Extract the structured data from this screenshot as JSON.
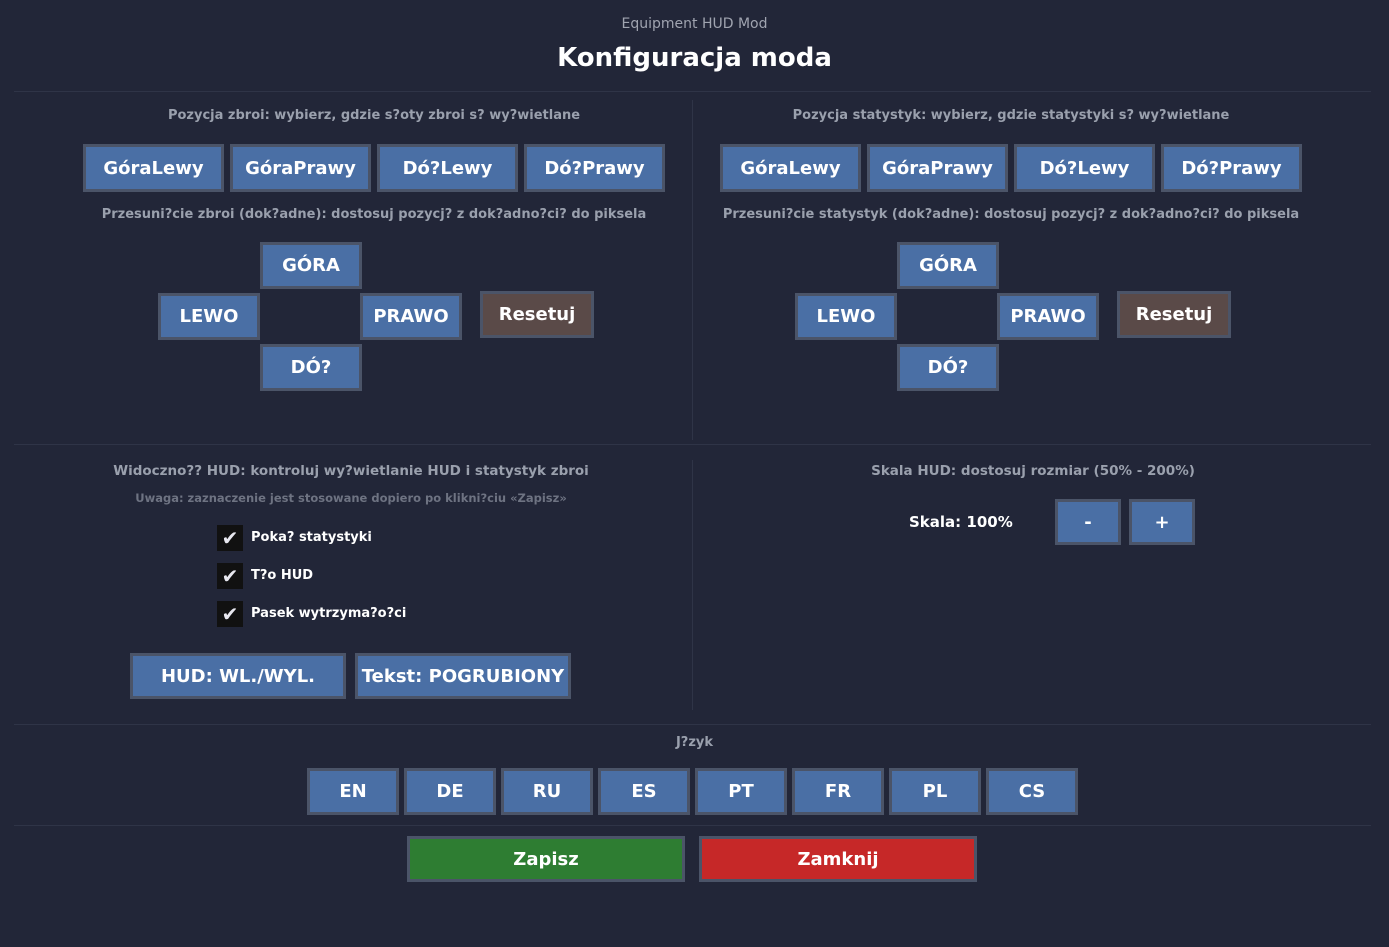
{
  "header": {
    "app": "Equipment HUD Mod",
    "title": "Konfiguracja moda"
  },
  "armor": {
    "position_label": "Pozycja zbroi: wybierz, gdzie s?oty zbroi s? wy?wietlane",
    "positions": [
      "GóraLewy",
      "GóraPrawy",
      "Dó?Lewy",
      "Dó?Prawy"
    ],
    "offset_label": "Przesuni?cie zbroi (dok?adne): dostosuj pozycj? z dok?adno?ci? do piksela",
    "up": "GÓRA",
    "left": "LEWO",
    "right": "PRAWO",
    "down": "DÓ?",
    "reset": "Resetuj"
  },
  "stats": {
    "position_label": "Pozycja statystyk: wybierz, gdzie statystyki s? wy?wietlane",
    "positions": [
      "GóraLewy",
      "GóraPrawy",
      "Dó?Lewy",
      "Dó?Prawy"
    ],
    "offset_label": "Przesuni?cie statystyk (dok?adne): dostosuj pozycj? z dok?adno?ci? do piksela",
    "up": "GÓRA",
    "left": "LEWO",
    "right": "PRAWO",
    "down": "DÓ?",
    "reset": "Resetuj"
  },
  "visibility": {
    "label": "Widoczno?? HUD: kontroluj wy?wietlanie HUD i statystyk zbroi",
    "note": "Uwaga: zaznaczenie jest stosowane dopiero po klikni?ciu «Zapisz»",
    "checkboxes": [
      {
        "label": "Poka? statystyki",
        "checked": true
      },
      {
        "label": "T?o HUD",
        "checked": true
      },
      {
        "label": "Pasek wytrzyma?o?ci",
        "checked": true
      }
    ],
    "toggle_hud": "HUD: WL./WYL.",
    "text_bold": "Tekst: POGRUBIONY"
  },
  "scale": {
    "label": "Skala HUD: dostosuj rozmiar (50% - 200%)",
    "value": "Skala: 100%",
    "minus": "-",
    "plus": "+"
  },
  "language": {
    "label": "J?zyk",
    "options": [
      "EN",
      "DE",
      "RU",
      "ES",
      "PT",
      "FR",
      "PL",
      "CS"
    ]
  },
  "footer": {
    "save": "Zapisz",
    "close": "Zamknij"
  },
  "colors": {
    "button": "#4a6fa5",
    "reset": "#5a4a48",
    "save": "#2e7d32",
    "close": "#c62828",
    "background": "#222638"
  },
  "check_icon": "✔"
}
